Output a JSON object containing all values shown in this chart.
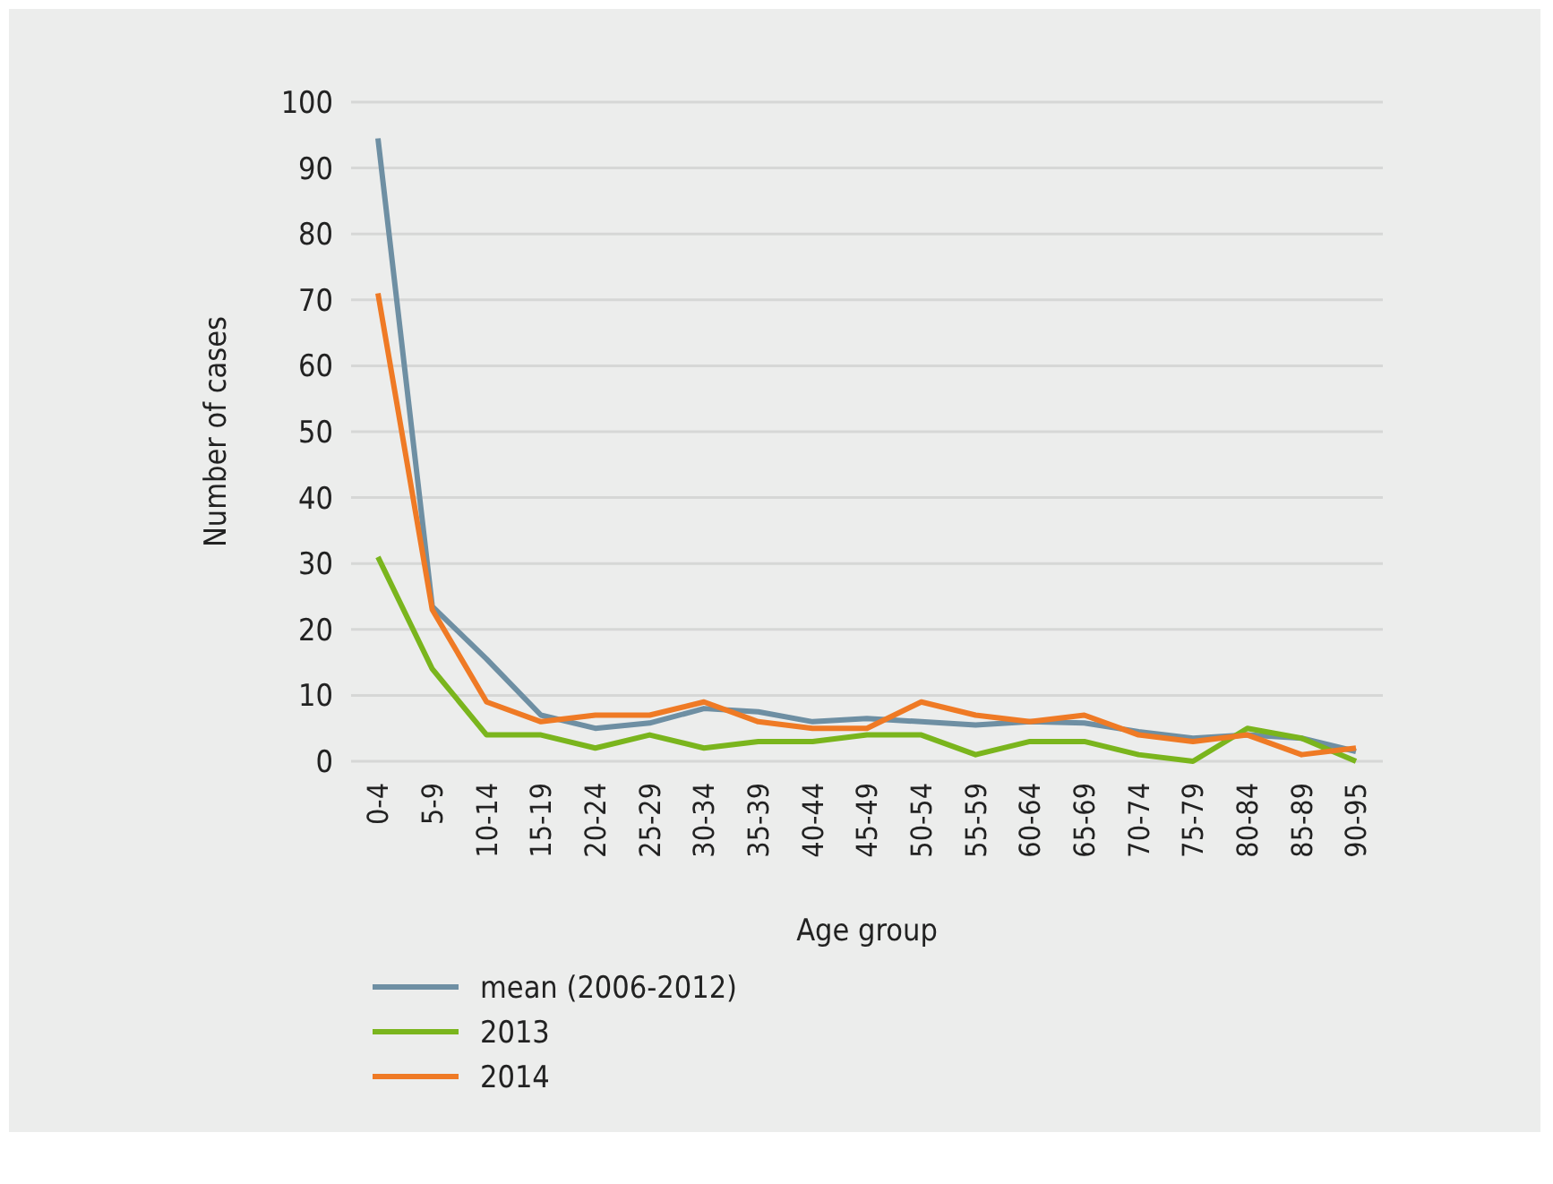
{
  "chart_data": {
    "type": "line",
    "xlabel": "Age group",
    "ylabel": "Number of cases",
    "categories": [
      "0-4",
      "5-9",
      "10-14",
      "15-19",
      "20-24",
      "25-29",
      "30-34",
      "35-39",
      "40-44",
      "45-49",
      "50-54",
      "55-59",
      "60-64",
      "65-69",
      "70-74",
      "75-79",
      "80-84",
      "85-89",
      "90-95"
    ],
    "series": [
      {
        "name": "mean (2006-2012)",
        "color": "#6e8fa3",
        "values": [
          94.5,
          23.5,
          15.5,
          7,
          5,
          5.8,
          8,
          7.5,
          6,
          6.5,
          6,
          5.5,
          6,
          5.8,
          4.5,
          3.5,
          4,
          3.5,
          1.5
        ]
      },
      {
        "name": "2013",
        "color": "#7ab51d",
        "values": [
          31,
          14,
          4,
          4,
          2,
          4,
          2,
          3,
          3,
          4,
          4,
          1,
          3,
          3,
          1,
          0,
          5,
          3.5,
          0
        ]
      },
      {
        "name": "2014",
        "color": "#ef7a25",
        "values": [
          71,
          23,
          9,
          6,
          7,
          7,
          9,
          6,
          5,
          5,
          9,
          7,
          6,
          7,
          4,
          3,
          4,
          1,
          2
        ]
      }
    ],
    "ylim": [
      0,
      100
    ],
    "yticks": [
      0,
      10,
      20,
      30,
      40,
      50,
      60,
      70,
      80,
      90,
      100
    ],
    "grid": "y",
    "legend": "bottom",
    "marker": "none",
    "line_style": "solid"
  }
}
